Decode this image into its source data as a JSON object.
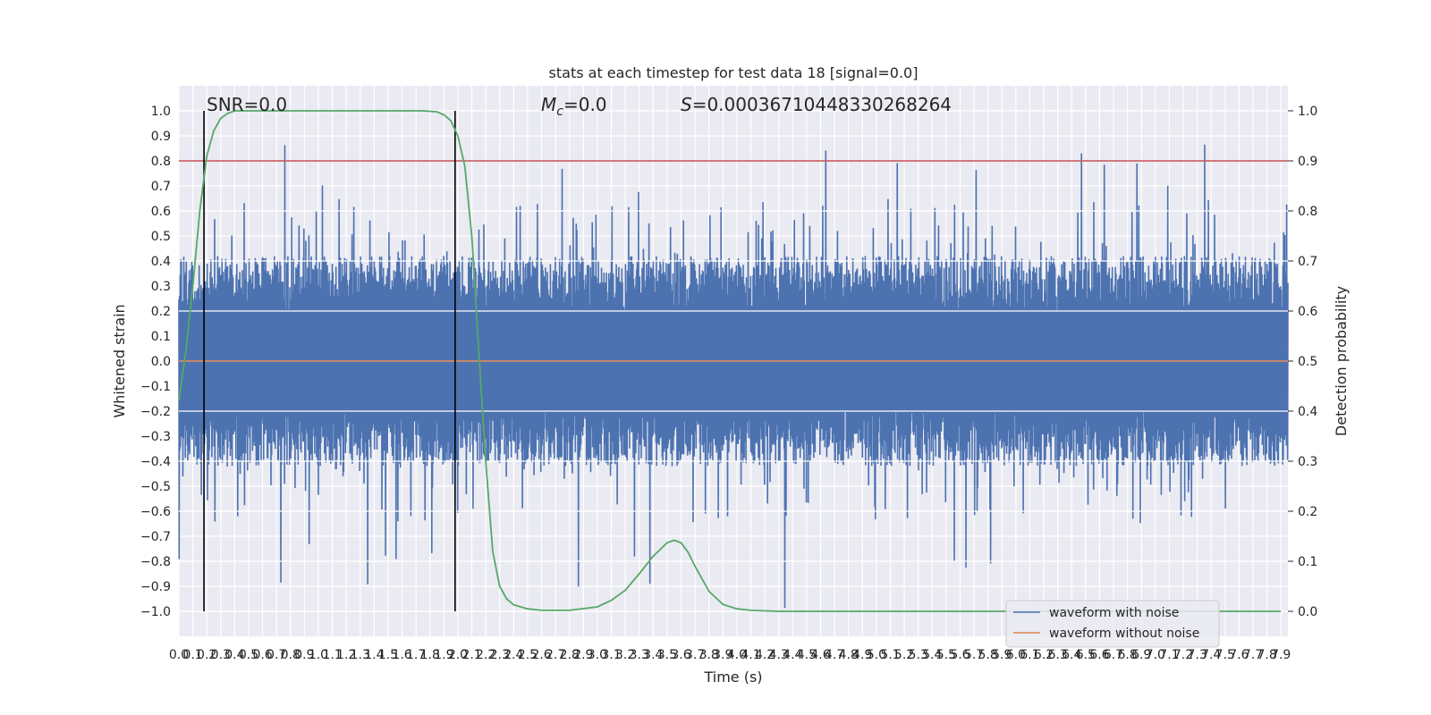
{
  "chart_data": {
    "type": "line",
    "title": "stats at each timestep for test data 18 [signal=0.0]",
    "xlabel": "Time (s)",
    "ylabel": "Whitened strain",
    "y2label": "Detection probability",
    "xlim": [
      0.0,
      7.95
    ],
    "ylim": [
      -1.1,
      1.1
    ],
    "y2lim": [
      -0.05,
      1.05
    ],
    "x_ticks": [
      "0.0",
      "0.1",
      "0.2",
      "0.3",
      "0.4",
      "0.5",
      "0.6",
      "0.7",
      "0.8",
      "0.9",
      "1.0",
      "1.1",
      "1.2",
      "1.3",
      "1.4",
      "1.5",
      "1.6",
      "1.7",
      "1.8",
      "1.9",
      "2.0",
      "2.1",
      "2.2",
      "2.3",
      "2.4",
      "2.5",
      "2.6",
      "2.7",
      "2.8",
      "2.9",
      "3.0",
      "3.1",
      "3.2",
      "3.3",
      "3.4",
      "3.5",
      "3.6",
      "3.7",
      "3.8",
      "3.9",
      "4.0",
      "4.1",
      "4.2",
      "4.3",
      "4.4",
      "4.5",
      "4.6",
      "4.7",
      "4.8",
      "4.9",
      "5.0",
      "5.1",
      "5.2",
      "5.3",
      "5.4",
      "5.5",
      "5.6",
      "5.7",
      "5.8",
      "5.9",
      "6.0",
      "6.1",
      "6.2",
      "6.3",
      "6.4",
      "6.5",
      "6.6",
      "6.7",
      "6.8",
      "6.9",
      "7.0",
      "7.1",
      "7.2",
      "7.3",
      "7.4",
      "7.5",
      "7.6",
      "7.7",
      "7.8",
      "7.9"
    ],
    "y_ticks": [
      "1.0",
      "0.9",
      "0.8",
      "0.7",
      "0.6",
      "0.5",
      "0.4",
      "0.3",
      "0.2",
      "0.1",
      "0.0",
      "−0.1",
      "−0.2",
      "−0.3",
      "−0.4",
      "−0.5",
      "−0.6",
      "−0.7",
      "−0.8",
      "−0.9",
      "−1.0"
    ],
    "y2_ticks": [
      "1.0",
      "0.9",
      "0.8",
      "0.7",
      "0.6",
      "0.5",
      "0.4",
      "0.3",
      "0.2",
      "0.1",
      "0.0"
    ],
    "annotations": {
      "snr": "SNR=0.0",
      "mc_symbol": "M",
      "mc_sub": "c",
      "mc_value": "=0.0",
      "s_symbol": "S",
      "s_value": "=0.00036710448330268264"
    },
    "vlines_x": [
      0.18,
      1.98
    ],
    "threshold_y2": 0.9,
    "noise_seed": 18,
    "series": [
      {
        "name": "waveform with noise",
        "color": "#4c72b0",
        "envelope_hi": 0.42,
        "envelope_lo": -0.42,
        "spike_max": 0.92,
        "spike_min": -0.99
      },
      {
        "name": "waveform without noise",
        "color": "#dd8452",
        "value": 0.0
      },
      {
        "name": "detection probability",
        "color": "#55a868",
        "x": [
          0.0,
          0.05,
          0.1,
          0.15,
          0.2,
          0.25,
          0.3,
          0.35,
          0.4,
          0.5,
          0.6,
          0.8,
          1.0,
          1.2,
          1.4,
          1.6,
          1.75,
          1.85,
          1.9,
          1.95,
          2.0,
          2.05,
          2.1,
          2.15,
          2.2,
          2.25,
          2.3,
          2.35,
          2.4,
          2.5,
          2.6,
          2.8,
          3.0,
          3.1,
          3.2,
          3.3,
          3.4,
          3.5,
          3.55,
          3.6,
          3.65,
          3.7,
          3.8,
          3.9,
          4.0,
          4.1,
          4.3,
          4.6,
          5.0,
          6.0,
          7.0,
          7.9
        ],
        "values": [
          0.42,
          0.52,
          0.65,
          0.8,
          0.91,
          0.96,
          0.985,
          0.995,
          1.0,
          1.0,
          1.0,
          1.0,
          1.0,
          1.0,
          1.0,
          1.0,
          1.0,
          0.998,
          0.992,
          0.98,
          0.95,
          0.89,
          0.75,
          0.52,
          0.3,
          0.12,
          0.05,
          0.025,
          0.013,
          0.005,
          0.002,
          0.002,
          0.009,
          0.022,
          0.042,
          0.075,
          0.11,
          0.137,
          0.142,
          0.137,
          0.118,
          0.09,
          0.04,
          0.014,
          0.005,
          0.002,
          0.0,
          0.0,
          0.0,
          0.0,
          0.0,
          0.0
        ]
      }
    ],
    "legend": [
      "waveform with noise",
      "waveform without noise"
    ],
    "legend_position": "lower-right"
  }
}
